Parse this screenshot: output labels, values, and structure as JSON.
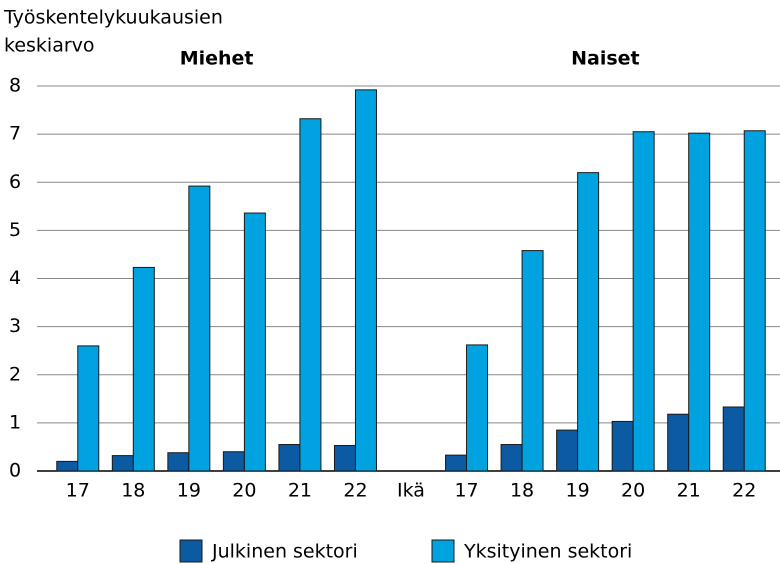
{
  "chart_data": {
    "type": "bar",
    "ylabel": [
      "Työskentelykuukausien",
      "keskiarvo"
    ],
    "panel_titles": [
      "Miehet",
      "Naiset"
    ],
    "xlabel": "Ikä",
    "categories": [
      "17",
      "18",
      "19",
      "20",
      "21",
      "22",
      null,
      "17",
      "18",
      "19",
      "20",
      "21",
      "22"
    ],
    "series": [
      {
        "name": "Julkinen sektori",
        "color": "#0b5aa2",
        "values": [
          0.2,
          0.32,
          0.38,
          0.4,
          0.55,
          0.53,
          null,
          0.33,
          0.55,
          0.85,
          1.03,
          1.18,
          1.33
        ]
      },
      {
        "name": "Yksityinen sektori",
        "color": "#00a3e0",
        "values": [
          2.6,
          4.23,
          5.92,
          5.36,
          7.32,
          7.92,
          null,
          2.62,
          4.58,
          6.2,
          7.05,
          7.02,
          7.07
        ]
      }
    ],
    "ylim": [
      0,
      8
    ],
    "yticks": [
      0,
      1,
      2,
      3,
      4,
      5,
      6,
      7,
      8
    ],
    "grid": true
  }
}
